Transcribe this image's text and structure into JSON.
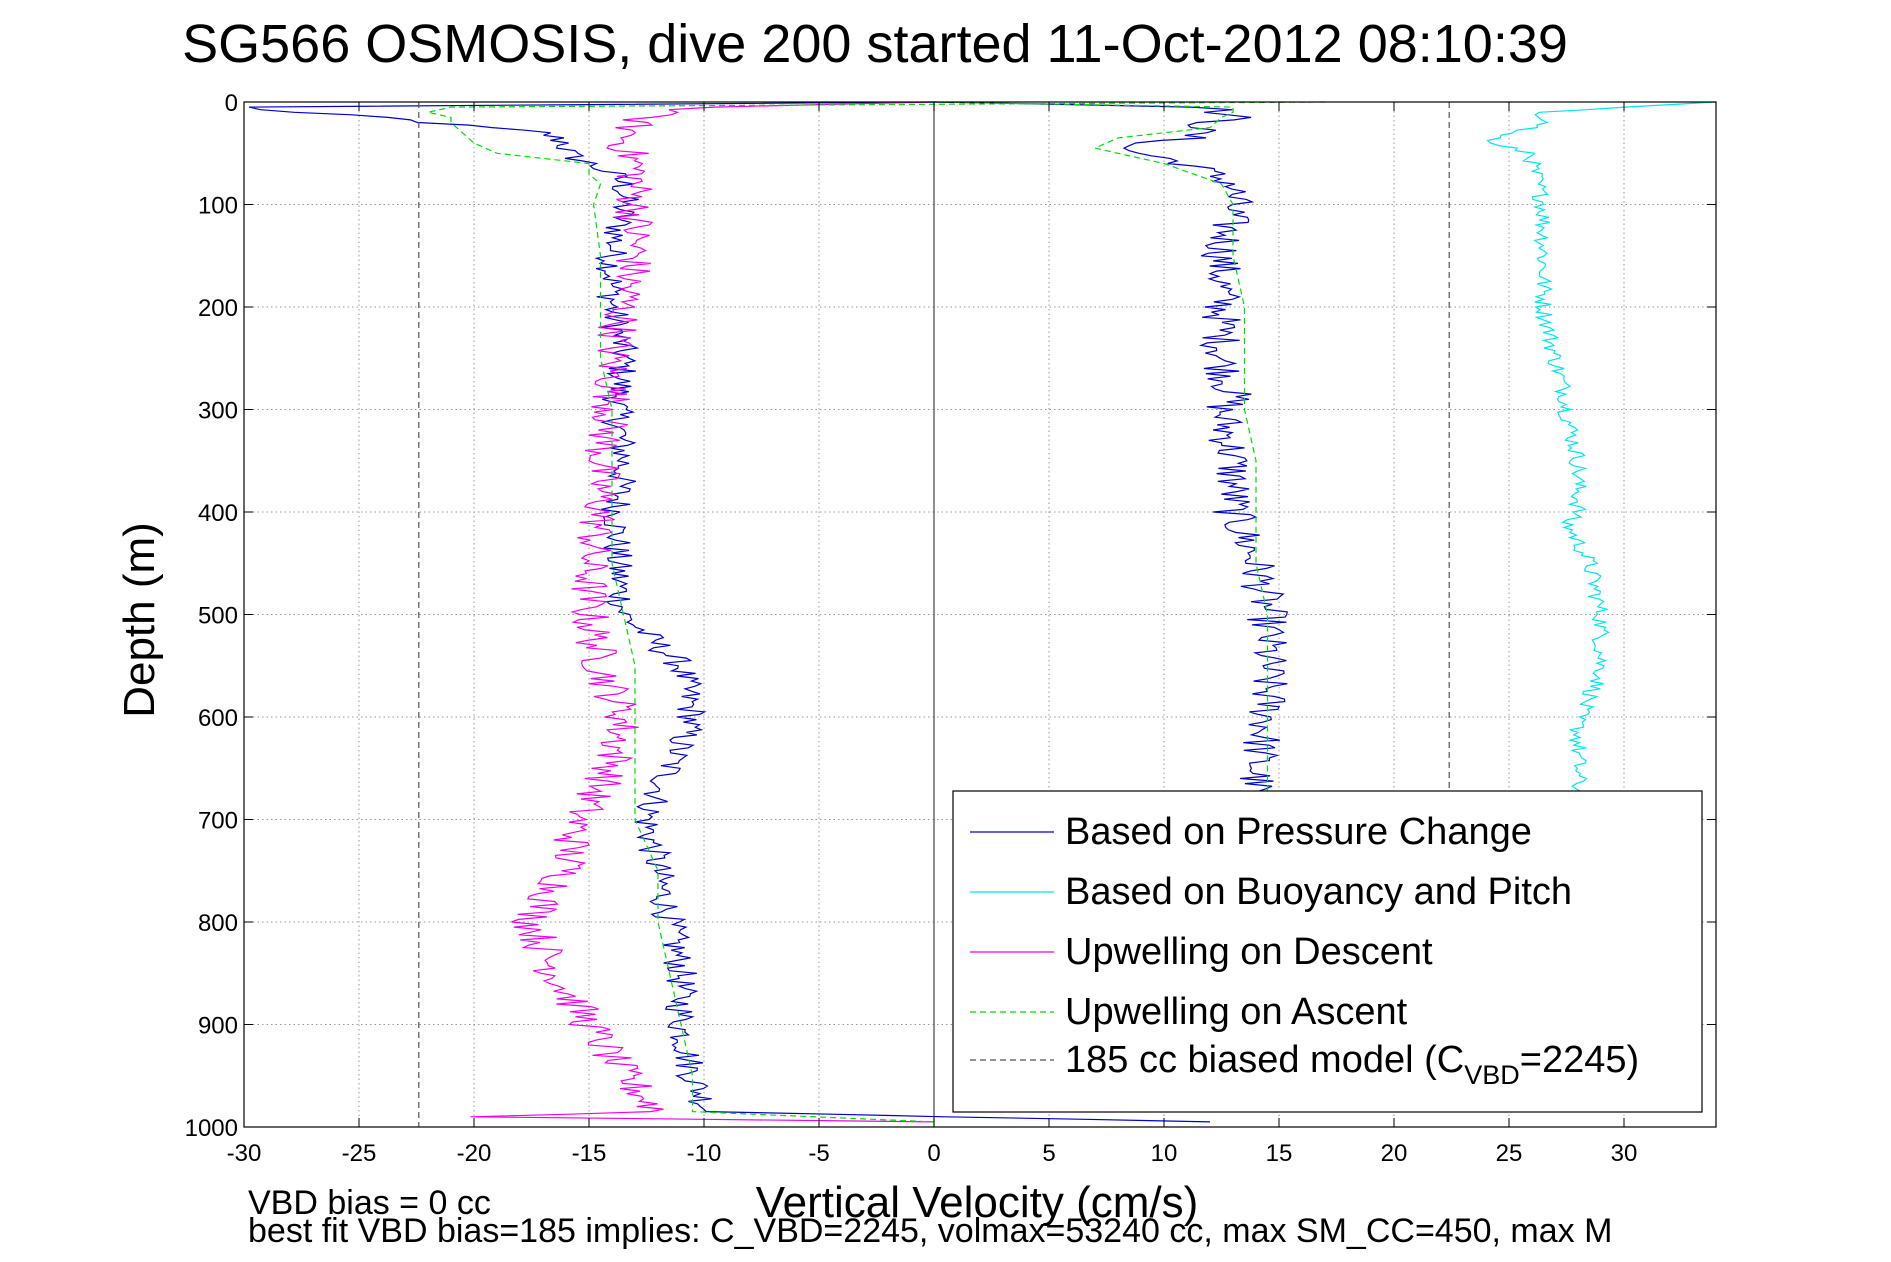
{
  "chart_data": {
    "type": "line",
    "title": "SG566 OSMOSIS, dive 200 started 11-Oct-2012 08:10:39",
    "xlabel": "Vertical Velocity (cm/s)",
    "ylabel": "Depth (m)",
    "xlim": [
      -30,
      34
    ],
    "ylim": [
      0,
      1000
    ],
    "y_reversed": true,
    "grid": true,
    "x_ticks": [
      -30,
      -25,
      -20,
      -15,
      -10,
      -5,
      0,
      5,
      10,
      15,
      20,
      25,
      30
    ],
    "y_ticks": [
      0,
      100,
      200,
      300,
      400,
      500,
      600,
      700,
      800,
      900,
      1000
    ],
    "zero_line_x": 0,
    "legend_position": "bottom-right",
    "series": [
      {
        "name": "Based on Pressure Change",
        "color": "#0000cc",
        "style": "solid",
        "noise": 0.7,
        "depth": [
          0,
          5,
          10,
          15,
          20,
          30,
          40,
          50,
          60,
          70,
          80,
          100,
          150,
          200,
          250,
          300,
          350,
          400,
          450,
          500,
          520,
          550,
          600,
          650,
          700,
          750,
          800,
          850,
          900,
          950,
          985,
          995
        ],
        "velocity": [
          0,
          -30,
          -28,
          -24,
          -22,
          -17,
          -16,
          -16,
          -15,
          -14,
          -13.5,
          -13.5,
          -14,
          -14,
          -13.5,
          -13.8,
          -13.5,
          -13.8,
          -13.8,
          -13.5,
          -12.5,
          -11,
          -10.5,
          -11.5,
          -12.5,
          -12,
          -11.5,
          -11,
          -11,
          -10.5,
          -9.8,
          12
        ]
      },
      {
        "name": "Based on Pressure Change",
        "color": "#0000cc",
        "style": "solid",
        "noise": 0.9,
        "depth": [
          0,
          5,
          15,
          20,
          35,
          45,
          50,
          60,
          70,
          80,
          100,
          150,
          200,
          250,
          290,
          300,
          350,
          400,
          450,
          500,
          550,
          600,
          650,
          680
        ],
        "velocity": [
          0,
          12,
          13,
          12,
          11,
          8,
          9,
          11,
          12,
          13,
          13,
          12.5,
          12.5,
          12.5,
          13,
          12.5,
          13,
          13,
          14,
          14.5,
          14.5,
          14.5,
          14,
          14
        ]
      },
      {
        "name": "Based on Buoyancy and Pitch",
        "color": "#00e5ee",
        "style": "solid",
        "noise": 0.4,
        "depth": [
          0,
          10,
          20,
          30,
          40,
          50,
          60,
          100,
          150,
          200,
          250,
          290,
          300,
          350,
          400,
          410,
          450,
          500,
          550,
          560,
          600,
          650,
          680
        ],
        "velocity": [
          34,
          26,
          27,
          25,
          24,
          26,
          26,
          26.5,
          26.5,
          26.5,
          27,
          27.5,
          27.5,
          28,
          28,
          27.5,
          28.5,
          29,
          29,
          29,
          28,
          28,
          28
        ]
      },
      {
        "name": "Upwelling on Descent",
        "color": "#ee00ee",
        "style": "solid",
        "noise": 0.9,
        "depth": [
          0,
          5,
          10,
          20,
          40,
          60,
          100,
          150,
          200,
          250,
          300,
          350,
          400,
          450,
          500,
          550,
          600,
          650,
          700,
          750,
          800,
          850,
          900,
          950,
          985,
          990,
          995
        ],
        "velocity": [
          0,
          -10,
          -12,
          -13,
          -13.5,
          -13,
          -13,
          -13,
          -13.5,
          -14,
          -14,
          -14.5,
          -14.5,
          -15,
          -15,
          -14.5,
          -13.5,
          -14,
          -15.5,
          -16,
          -17.5,
          -16.5,
          -15,
          -13.5,
          -12,
          -20,
          0
        ]
      },
      {
        "name": "Upwelling on Ascent",
        "color": "#00dd00",
        "style": "dashed",
        "noise": 0,
        "depth": [
          0,
          5,
          10,
          15,
          20,
          30,
          40,
          50,
          60,
          70,
          80,
          100,
          150,
          200,
          250,
          300,
          350,
          400,
          450,
          500,
          550,
          600,
          650,
          700,
          750,
          800,
          850,
          900,
          950,
          985,
          995
        ],
        "velocity": [
          17,
          -21,
          -22,
          -21,
          -21,
          -20.5,
          -20,
          -19,
          -15,
          -15,
          -14.5,
          -14.8,
          -14.5,
          -14.5,
          -14.5,
          -14,
          -14,
          -14,
          -14,
          -13.5,
          -13,
          -13,
          -13,
          -13,
          -12,
          -12,
          -11.5,
          -11,
          -10.5,
          -10.5,
          0
        ]
      },
      {
        "name": "Upwelling on Ascent",
        "color": "#00dd00",
        "style": "dashed",
        "noise": 0,
        "depth": [
          0,
          5,
          10,
          15,
          25,
          35,
          45,
          50,
          60,
          80,
          100,
          150,
          200,
          250,
          300,
          350,
          400,
          450,
          500,
          550,
          600,
          650,
          680
        ],
        "velocity": [
          0,
          13,
          13,
          12.5,
          12,
          8,
          7,
          8,
          10,
          12.5,
          13,
          13,
          13.5,
          13.5,
          13.5,
          14,
          14,
          14,
          14.5,
          14.5,
          14.5,
          14.5,
          14.5
        ]
      },
      {
        "name": "185 cc biased model",
        "color": "#555555",
        "style": "dashed",
        "noise": 0,
        "depth": [
          0,
          1000
        ],
        "velocity": [
          -22.4,
          -22.4
        ]
      },
      {
        "name": "185 cc biased model",
        "color": "#555555",
        "style": "dashed",
        "noise": 0,
        "depth": [
          0,
          670
        ],
        "velocity": [
          22.4,
          22.4
        ]
      }
    ],
    "legend": [
      {
        "label": "Based on Pressure Change",
        "color": "#0000cc",
        "style": "solid"
      },
      {
        "label": "Based on Buoyancy and Pitch",
        "color": "#00e5ee",
        "style": "solid"
      },
      {
        "label": "Upwelling on Descent",
        "color": "#ee00ee",
        "style": "solid"
      },
      {
        "label": "Upwelling on Ascent",
        "color": "#00dd00",
        "style": "dashed"
      },
      {
        "label": "185 cc biased model (C",
        "sub": "VBD",
        "tail": "=2245)",
        "color": "#555555",
        "style": "dashed"
      }
    ]
  },
  "footer": {
    "line1": "VBD bias = 0 cc",
    "line2": "best fit VBD bias=185 implies: C_VBD=2245, volmax=53240 cc, max SM_CC=450, max M"
  }
}
